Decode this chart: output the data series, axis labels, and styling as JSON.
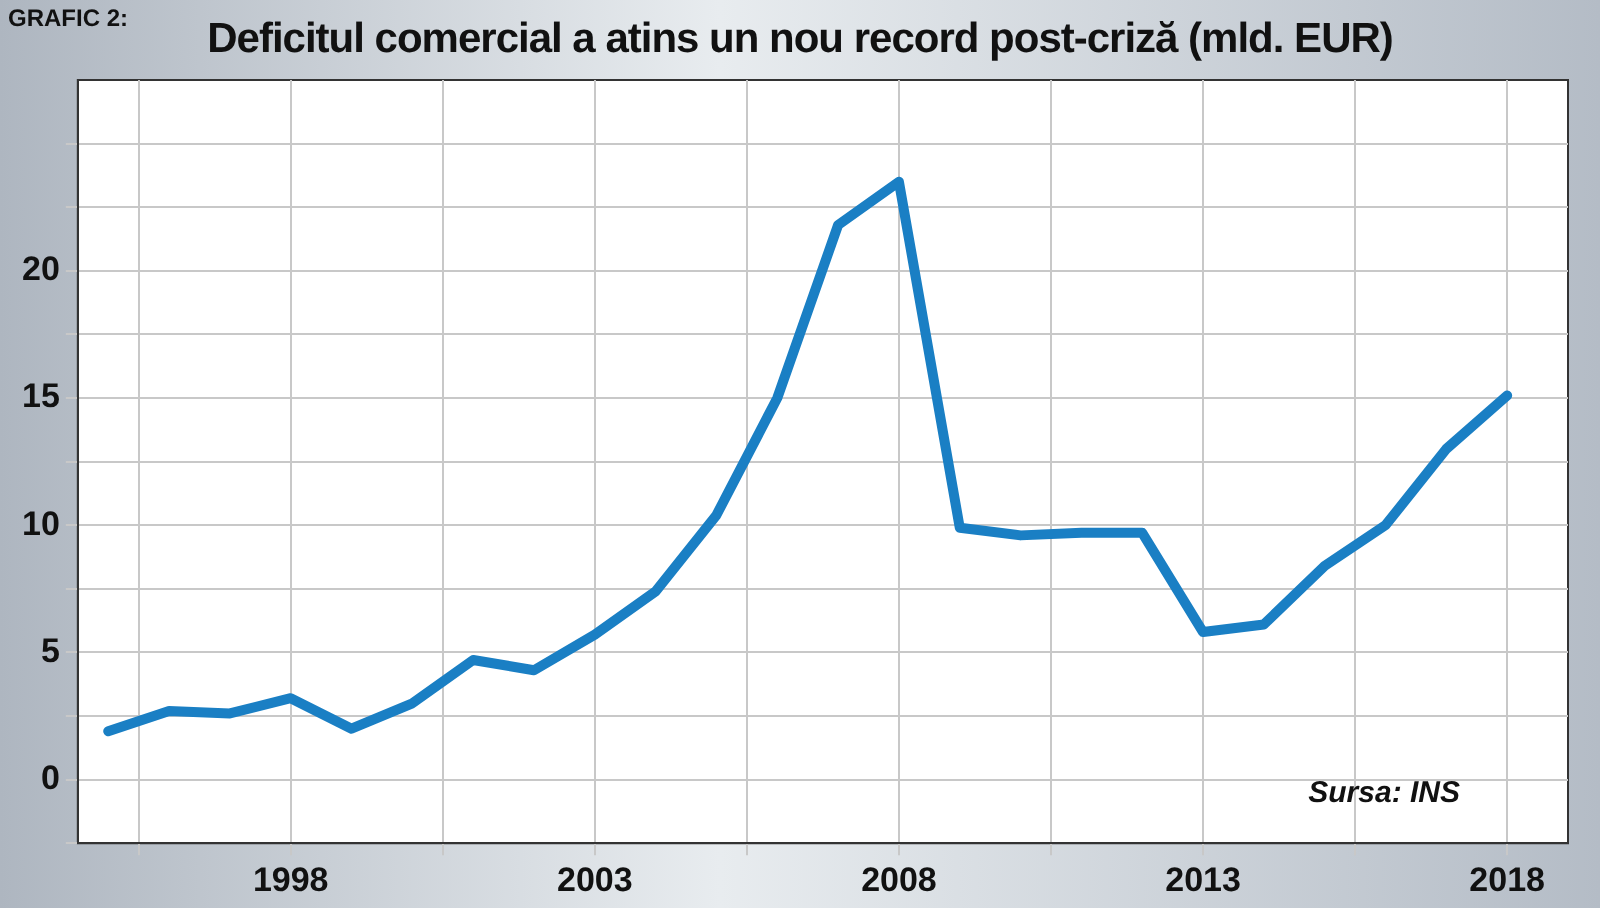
{
  "chart_data": {
    "type": "line",
    "title": "Deficitul comercial a atins un nou record post-criză (mld. EUR)",
    "annotations": [
      "GRAFIC 2:",
      "Sursa: INS"
    ],
    "x": [
      1995,
      1996,
      1997,
      1998,
      1999,
      2000,
      2001,
      2002,
      2003,
      2004,
      2005,
      2006,
      2007,
      2008,
      2009,
      2010,
      2011,
      2012,
      2013,
      2014,
      2015,
      2016,
      2017,
      2018
    ],
    "series": [
      {
        "color": "#1a7fc4",
        "values": [
          1.9,
          2.7,
          2.6,
          3.2,
          2.0,
          3.0,
          4.7,
          4.3,
          5.7,
          7.4,
          10.4,
          15.0,
          21.8,
          23.5,
          9.9,
          9.6,
          9.7,
          9.7,
          5.8,
          6.1,
          8.4,
          10.0,
          13.0,
          15.1
        ]
      }
    ],
    "xlim": [
      1994.5,
      2019
    ],
    "xticks": [
      {
        "value": 1995.5,
        "label": null
      },
      1998,
      {
        "value": 2000.5,
        "label": null
      },
      2003,
      {
        "value": 2005.5,
        "label": null
      },
      2008,
      {
        "value": 2010.5,
        "label": null
      },
      2013,
      {
        "value": 2015.5,
        "label": null
      },
      2018
    ],
    "ylim": [
      -2.5,
      27.5
    ],
    "yticks": [
      {
        "value": -2.5,
        "label": null
      },
      0,
      {
        "value": 2.5,
        "label": null
      },
      5,
      {
        "value": 7.5,
        "label": null
      },
      10,
      {
        "value": 12.5,
        "label": null
      },
      15,
      {
        "value": 17.5,
        "label": null
      },
      20,
      {
        "value": 22.5,
        "label": null
      },
      {
        "value": 25,
        "label": null
      }
    ],
    "grid": true,
    "legend": false,
    "marker": "none",
    "line_style": "solid"
  }
}
